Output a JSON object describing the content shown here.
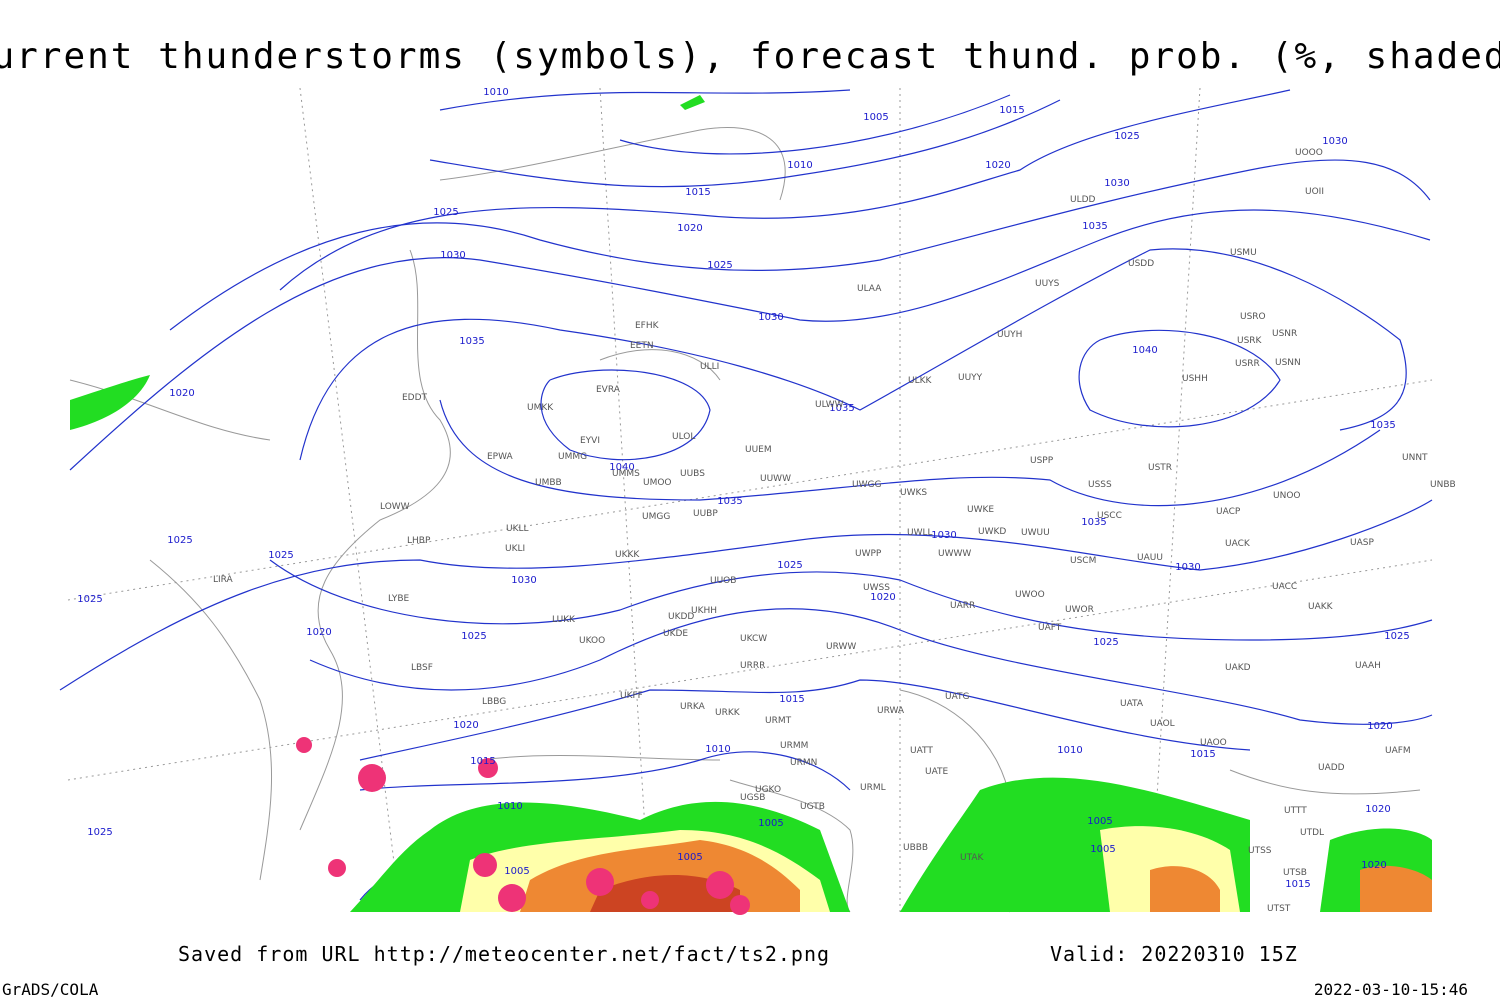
{
  "header": {
    "title": "Current thunderstorms (symbols), forecast thund. prob. (%, shaded)"
  },
  "isobar_labels": [
    1010,
    1005,
    1015,
    1010,
    1020,
    1025,
    1030,
    1015,
    1030,
    1025,
    1020,
    1035,
    1030,
    1025,
    1030,
    1035,
    1040,
    1020,
    1035,
    1035,
    1040,
    1035,
    1030,
    1035,
    1025,
    1025,
    1030,
    1025,
    1030,
    1025,
    1020,
    1020,
    1025,
    1025,
    1025,
    1015,
    1020,
    1020,
    1015,
    1010,
    1010,
    1015,
    1010,
    1005,
    1005,
    1005,
    1020,
    1005,
    1005,
    1020,
    1015,
    1025
  ],
  "stations": [
    "UOOO",
    "UOII",
    "ULDD",
    "USMU",
    "USDD",
    "UUYS",
    "ULAA",
    "USRO",
    "USRK",
    "USNR",
    "USNN",
    "USRR",
    "USHH",
    "UUYH",
    "ULKK",
    "UUYY",
    "ULWW",
    "EFHK",
    "EETN",
    "ULLI",
    "EVRA",
    "EDDT",
    "UMKK",
    "ULOL",
    "EYVI",
    "UUEM",
    "EPWA",
    "UMMG",
    "UMMS",
    "UMOO",
    "UUBS",
    "UUWW",
    "UWGG",
    "UWKS",
    "USPP",
    "USSS",
    "USTR",
    "UNOO",
    "UNBB",
    "UNNT",
    "UMBB",
    "UMGG",
    "UUBP",
    "UWKE",
    "UWKD",
    "UWUU",
    "USCC",
    "UACP",
    "LOWW",
    "UKLL",
    "UKLI",
    "LHBP",
    "UKKK",
    "UWWW",
    "UWLL",
    "UWPP",
    "USCM",
    "UAUU",
    "UACK",
    "UASP",
    "UUOB",
    "UWSS",
    "LIRA",
    "LYBE",
    "UKDD",
    "UKHH",
    "LUKK",
    "UARR",
    "UWOO",
    "UWOR",
    "UACC",
    "UAKK",
    "UKOO",
    "UKDE",
    "UKCW",
    "URWW",
    "UAFT",
    "URRR",
    "LBSF",
    "UAKD",
    "UAAH",
    "LBBG",
    "UKFF",
    "URKA",
    "URKK",
    "URMT",
    "UATG",
    "URWA",
    "UATA",
    "UAOL",
    "UAOO",
    "URMM",
    "URMN",
    "UATE",
    "UATT",
    "UGKO",
    "URML",
    "UGSB",
    "UGTB",
    "UADD",
    "UAFM",
    "UTTT",
    "UTDL",
    "UTAK",
    "UBBB",
    "UTSS",
    "UTSB",
    "UTST"
  ],
  "footer": {
    "source": "Saved from URL http://meteocenter.net/fact/ts2.png",
    "valid": "Valid: 20220310 15Z",
    "software": "GrADS/COLA",
    "timestamp": "2022-03-10-15:46"
  }
}
